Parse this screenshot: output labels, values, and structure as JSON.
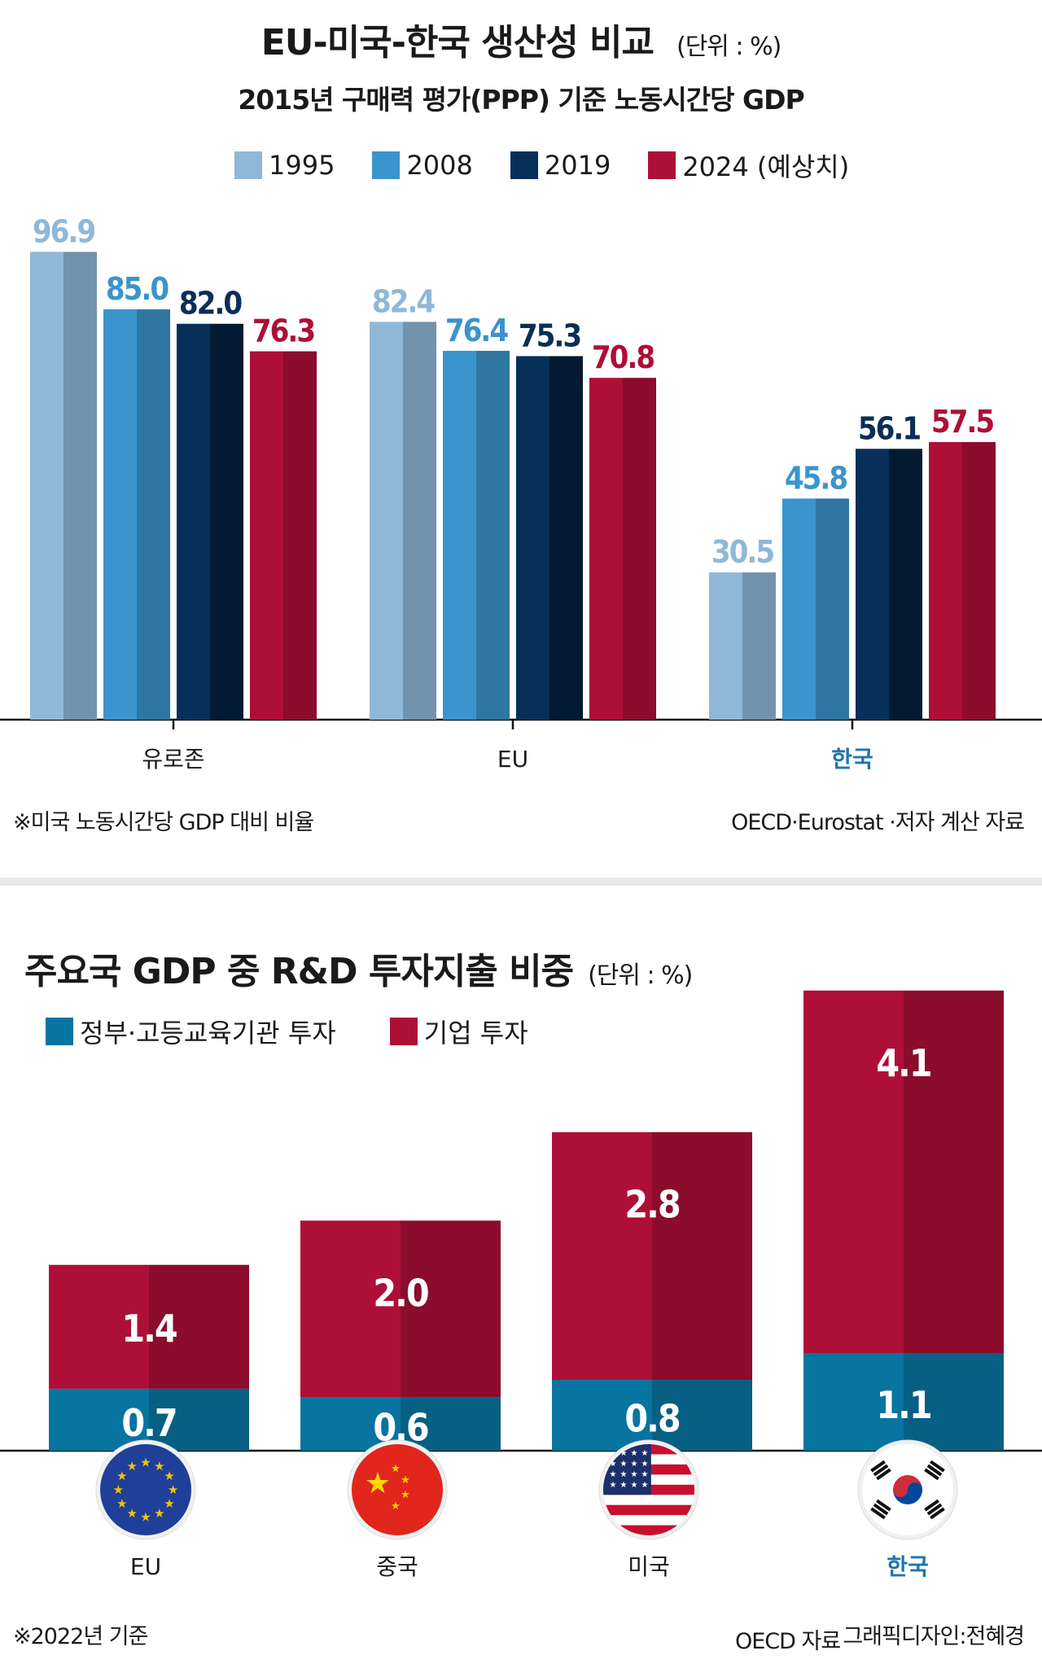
{
  "top_panel": {
    "title": "EU-미국-한국 생산성 비교",
    "unit": "(단위 : %)",
    "subtitle": "2015년 구매력 평가(PPP) 기준 노동시간당 GDP",
    "footnote": "※미국 노동시간당 GDP 대비 비율",
    "source": "OECD·Eurostat ·저자 계산 자료"
  },
  "bottom_panel": {
    "title": "주요국 GDP 중 R&D 투자지출 비중",
    "unit": "(단위 : %)",
    "footnote": "※2022년 기준",
    "source": "OECD 자료",
    "credit": "그래픽디자인:전혜경"
  },
  "colors": {
    "1995": "#8fb8d8",
    "2008": "#3b94cc",
    "2019": "#06305a",
    "2024": "#ae0f36",
    "gov": "#0874a0",
    "biz": "#ae0f36",
    "highlight": "#1f74b0"
  },
  "chart_data": [
    {
      "type": "bar",
      "categories": [
        "유로존",
        "EU",
        "한국"
      ],
      "series": [
        {
          "name": "1995",
          "values": [
            96.9,
            82.4,
            30.5
          ]
        },
        {
          "name": "2008",
          "values": [
            85.0,
            76.4,
            45.8
          ]
        },
        {
          "name": "2019",
          "values": [
            82.0,
            75.3,
            56.1
          ]
        },
        {
          "name": "2024 (예상치)",
          "values": [
            76.3,
            70.8,
            57.5
          ]
        }
      ],
      "value_labels": [
        [
          "96.9",
          "82.4",
          "30.5"
        ],
        [
          "85.0",
          "76.4",
          "45.8"
        ],
        [
          "82.0",
          "75.3",
          "56.1"
        ],
        [
          "76.3",
          "70.8",
          "57.5"
        ]
      ],
      "ylim": [
        0,
        100
      ],
      "grid": false,
      "legend": "top",
      "highlight_category": "한국"
    },
    {
      "type": "bar",
      "stacked": true,
      "categories": [
        "EU",
        "중국",
        "미국",
        "한국"
      ],
      "series": [
        {
          "name": "정부·고등교육기관 투자",
          "values": [
            0.7,
            0.6,
            0.8,
            1.1
          ]
        },
        {
          "name": "기업 투자",
          "values": [
            1.4,
            2.0,
            2.8,
            4.1
          ]
        }
      ],
      "value_labels": [
        [
          "0.7",
          "0.6",
          "0.8",
          "1.1"
        ],
        [
          "1.4",
          "2.0",
          "2.8",
          "4.1"
        ]
      ],
      "icons": [
        "eu-flag-icon",
        "china-flag-icon",
        "us-flag-icon",
        "korea-flag-icon"
      ],
      "ylim": [
        0,
        5.2
      ],
      "grid": false,
      "legend": "top-left",
      "highlight_category": "한국"
    }
  ]
}
